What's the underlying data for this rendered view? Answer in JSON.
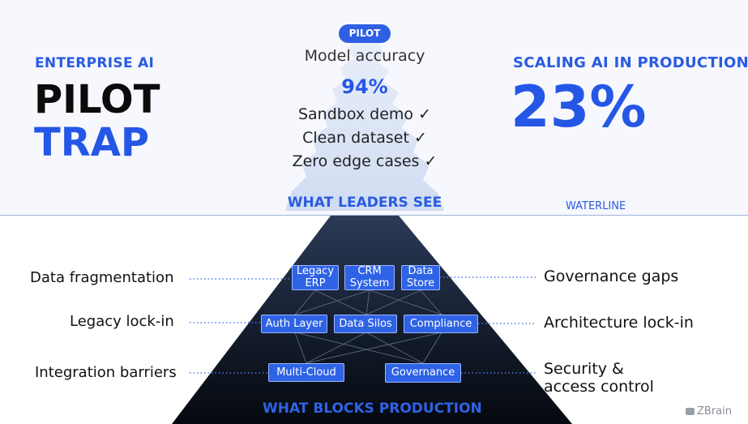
{
  "left": {
    "kicker": "ENTERPRISE AI",
    "title_line1": "PILOT",
    "title_line2": "TRAP"
  },
  "right": {
    "kicker": "SCALING AI IN PRODUCTION",
    "stat": "23%"
  },
  "tip": {
    "badge": "PILOT",
    "metric_label": "Model accuracy",
    "metric_value": "94%",
    "checks": [
      "Sandbox demo ✓",
      "Clean dataset ✓",
      "Zero edge cases ✓"
    ],
    "caption": "WHAT LEADERS SEE"
  },
  "waterline_label": "WATERLINE",
  "base": {
    "caption": "WHAT BLOCKS PRODUCTION",
    "nodes": {
      "legacy_erp": [
        "Legacy",
        "ERP"
      ],
      "crm_system": [
        "CRM",
        "System"
      ],
      "data_store": [
        "Data",
        "Store"
      ],
      "auth_layer": "Auth Layer",
      "data_silos": "Data Silos",
      "compliance": "Compliance",
      "multi_cloud": "Multi-Cloud",
      "governance": "Governance"
    },
    "left_labels": [
      "Data fragmentation",
      "Legacy lock-in",
      "Integration barriers"
    ],
    "right_labels": [
      "Governance gaps",
      "Architecture lock-in",
      "Security &",
      "access control"
    ]
  },
  "brand": "ZBrain",
  "colors": {
    "accent": "#2f63e6",
    "kicker": "#2a5be0",
    "stat": "#2557e6",
    "base_top": "#26344f",
    "base_bottom": "#05090f",
    "tip": "#d6e1f5"
  }
}
